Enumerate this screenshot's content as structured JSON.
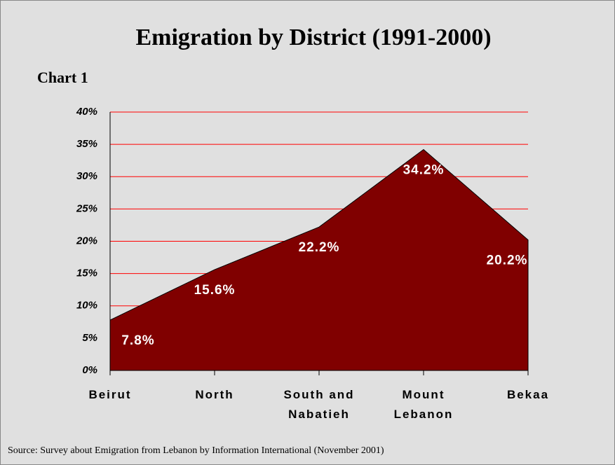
{
  "chart_data": {
    "type": "area",
    "title": "Emigration by District (1991-2000)",
    "subtitle": "Chart 1",
    "source": "Source: Survey about Emigration from Lebanon by Information International (November 2001)",
    "categories": [
      "Beirut",
      "North",
      "South and Nabatieh",
      "Mount Lebanon",
      "Bekaa"
    ],
    "values": [
      7.8,
      15.6,
      22.2,
      34.2,
      20.2
    ],
    "value_labels": [
      "7.8%",
      "15.6%",
      "22.2%",
      "34.2%",
      "20.2%"
    ],
    "color": "#800000",
    "ylim": [
      0,
      40
    ],
    "yticks": [
      {
        "value": 0,
        "label": "0%"
      },
      {
        "value": 5,
        "label": "5%"
      },
      {
        "value": 10,
        "label": "10%"
      },
      {
        "value": 15,
        "label": "15%"
      },
      {
        "value": 20,
        "label": "20%"
      },
      {
        "value": 25,
        "label": "25%"
      },
      {
        "value": 30,
        "label": "30%"
      },
      {
        "value": 35,
        "label": "35%"
      },
      {
        "value": 40,
        "label": "40%"
      }
    ],
    "grid": true,
    "grid_color": "#ff0000"
  }
}
